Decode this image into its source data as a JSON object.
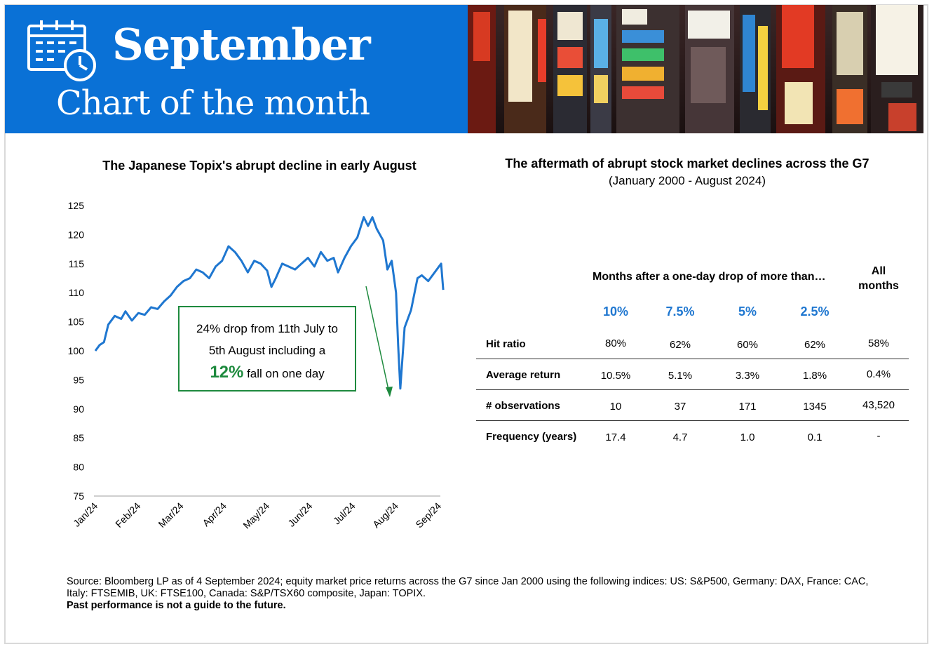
{
  "banner": {
    "title": "September",
    "subtitle": "Chart of the month"
  },
  "colors": {
    "banner_blue": "#0a71d6",
    "line_blue": "#1f77d0",
    "callout_green": "#1e8a3e",
    "header_blue": "#1f77d0"
  },
  "icons": {
    "calendar": "calendar-clock-icon",
    "photo": "tokyo-street-signs-photo"
  },
  "chart": {
    "title": "The Japanese Topix's abrupt decline in early August",
    "callout_line1": "24% drop from 11th July to",
    "callout_line2": "5th August including a",
    "callout_big": "12%",
    "callout_line3": " fall on one day"
  },
  "chart_data": {
    "type": "line",
    "title": "The Japanese Topix's abrupt decline in early August",
    "xlabel": "",
    "ylabel": "",
    "ylim": [
      75,
      125
    ],
    "yticks": [
      75,
      80,
      85,
      90,
      95,
      100,
      105,
      110,
      115,
      120,
      125
    ],
    "xticks": [
      "Jan/24",
      "Feb/24",
      "Mar/24",
      "Apr/24",
      "May/24",
      "Jun/24",
      "Jul/24",
      "Aug/24",
      "Sep/24"
    ],
    "grid": false,
    "legend": "none",
    "series": [
      {
        "values_by_month_index": [
          [
            0.0,
            100.0
          ],
          [
            0.1,
            101.0
          ],
          [
            0.2,
            101.5
          ],
          [
            0.3,
            104.5
          ],
          [
            0.45,
            106.0
          ],
          [
            0.6,
            105.5
          ],
          [
            0.7,
            106.8
          ],
          [
            0.85,
            105.2
          ],
          [
            1.0,
            106.5
          ],
          [
            1.15,
            106.2
          ],
          [
            1.3,
            107.5
          ],
          [
            1.45,
            107.2
          ],
          [
            1.6,
            108.5
          ],
          [
            1.75,
            109.5
          ],
          [
            1.9,
            111.0
          ],
          [
            2.05,
            112.0
          ],
          [
            2.2,
            112.5
          ],
          [
            2.35,
            114.0
          ],
          [
            2.5,
            113.5
          ],
          [
            2.65,
            112.5
          ],
          [
            2.8,
            114.5
          ],
          [
            2.95,
            115.5
          ],
          [
            3.1,
            118.0
          ],
          [
            3.25,
            117.0
          ],
          [
            3.4,
            115.5
          ],
          [
            3.55,
            113.5
          ],
          [
            3.7,
            115.5
          ],
          [
            3.85,
            115.0
          ],
          [
            4.0,
            113.8
          ],
          [
            4.1,
            111.0
          ],
          [
            4.2,
            112.5
          ],
          [
            4.35,
            115.0
          ],
          [
            4.5,
            114.5
          ],
          [
            4.65,
            114.0
          ],
          [
            4.8,
            115.0
          ],
          [
            4.95,
            116.0
          ],
          [
            5.1,
            114.5
          ],
          [
            5.25,
            117.0
          ],
          [
            5.4,
            115.5
          ],
          [
            5.55,
            116.0
          ],
          [
            5.65,
            113.5
          ],
          [
            5.8,
            116.0
          ],
          [
            5.95,
            118.0
          ],
          [
            6.1,
            119.5
          ],
          [
            6.25,
            123.0
          ],
          [
            6.35,
            121.5
          ],
          [
            6.45,
            123.0
          ],
          [
            6.55,
            121.0
          ],
          [
            6.7,
            119.0
          ],
          [
            6.8,
            114.0
          ],
          [
            6.9,
            115.5
          ],
          [
            7.0,
            110.0
          ],
          [
            7.05,
            101.0
          ],
          [
            7.1,
            93.5
          ],
          [
            7.2,
            104.0
          ],
          [
            7.35,
            107.0
          ],
          [
            7.5,
            112.5
          ],
          [
            7.6,
            113.0
          ],
          [
            7.75,
            112.0
          ],
          [
            7.9,
            113.5
          ],
          [
            8.0,
            114.5
          ],
          [
            8.05,
            115.0
          ],
          [
            8.1,
            110.5
          ]
        ]
      }
    ]
  },
  "table": {
    "title": "The aftermath of abrupt stock market declines across the G7",
    "subtitle": "(January 2000 - August 2024)",
    "months_header": "Months after a one-day drop of more than…",
    "all_months_line1": "All",
    "all_months_line2": "months",
    "columns": [
      "10%",
      "7.5%",
      "5%",
      "2.5%"
    ],
    "rows": [
      {
        "label": "Hit ratio",
        "values": [
          "80%",
          "62%",
          "60%",
          "62%"
        ],
        "all": "58%"
      },
      {
        "label": "Average return",
        "values": [
          "10.5%",
          "5.1%",
          "3.3%",
          "1.8%"
        ],
        "all": "0.4%"
      },
      {
        "label": "# observations",
        "values": [
          "10",
          "37",
          "171",
          "1345"
        ],
        "all": "43,520"
      },
      {
        "label": "Frequency (years)",
        "values": [
          "17.4",
          "4.7",
          "1.0",
          "0.1"
        ],
        "all": "-"
      }
    ]
  },
  "source": {
    "text": "Source: Bloomberg LP as of 4 September 2024; equity market price returns across the G7 since Jan 2000 using the following indices: US: S&P500, Germany: DAX, France: CAC, Italy: FTSEMIB, UK: FTSE100, Canada: S&P/TSX60 composite, Japan: TOPIX.",
    "disclaimer": "Past performance is not a guide to the future."
  }
}
